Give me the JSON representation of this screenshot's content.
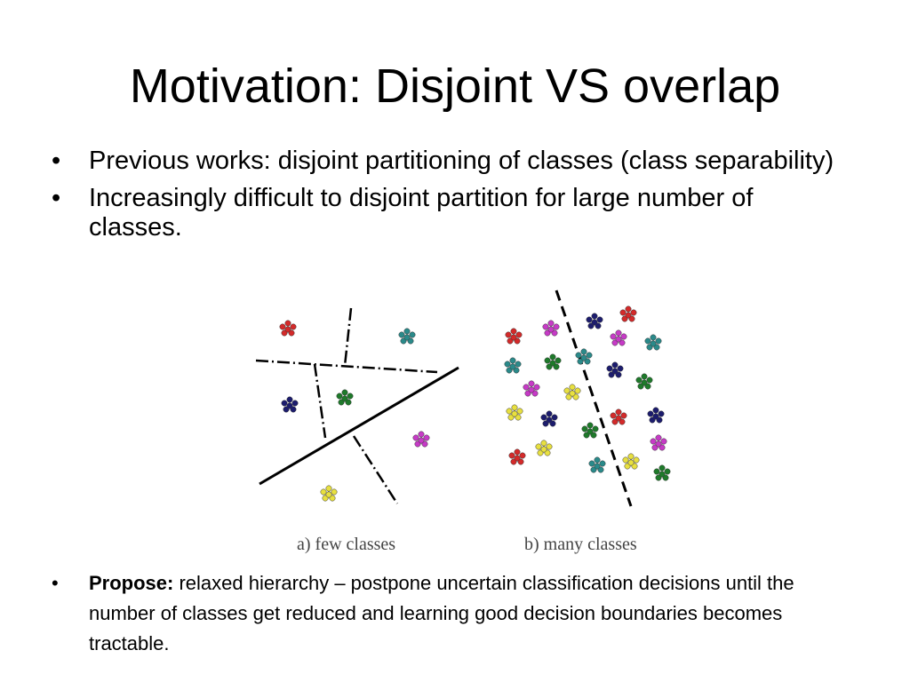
{
  "slide": {
    "title": "Motivation: Disjoint VS overlap",
    "bullets": [
      "Previous works: disjoint  partitioning of classes (class separability)",
      "Increasingly difficult to disjoint partition for large number of classes."
    ],
    "propose": {
      "label": "Propose:",
      "text": " relaxed hierarchy – postpone uncertain classification decisions until the number of classes get reduced and learning good decision boundaries becomes tractable."
    },
    "bullet_glyph": "•"
  },
  "figure": {
    "caption_a": "a) few classes",
    "caption_b": "b) many classes",
    "colors": {
      "red": "#d42a2a",
      "teal": "#2a8a8a",
      "navy": "#1c1c6e",
      "green": "#1e7a2a",
      "magenta": "#c73ac7",
      "yellow": "#e8e040"
    },
    "panel_a_clusters": [
      {
        "color": "red"
      },
      {
        "color": "teal"
      },
      {
        "color": "navy"
      },
      {
        "color": "green"
      },
      {
        "color": "magenta"
      },
      {
        "color": "yellow"
      }
    ],
    "panel_b_clusters": [
      {
        "color": "red"
      },
      {
        "color": "magenta"
      },
      {
        "color": "navy"
      },
      {
        "color": "red"
      },
      {
        "color": "teal"
      },
      {
        "color": "green"
      },
      {
        "color": "teal"
      },
      {
        "color": "magenta"
      },
      {
        "color": "teal"
      },
      {
        "color": "navy"
      },
      {
        "color": "magenta"
      },
      {
        "color": "yellow"
      },
      {
        "color": "green"
      },
      {
        "color": "yellow"
      },
      {
        "color": "navy"
      },
      {
        "color": "red"
      },
      {
        "color": "navy"
      },
      {
        "color": "green"
      },
      {
        "color": "magenta"
      },
      {
        "color": "red"
      },
      {
        "color": "yellow"
      },
      {
        "color": "teal"
      },
      {
        "color": "yellow"
      },
      {
        "color": "green"
      }
    ]
  }
}
